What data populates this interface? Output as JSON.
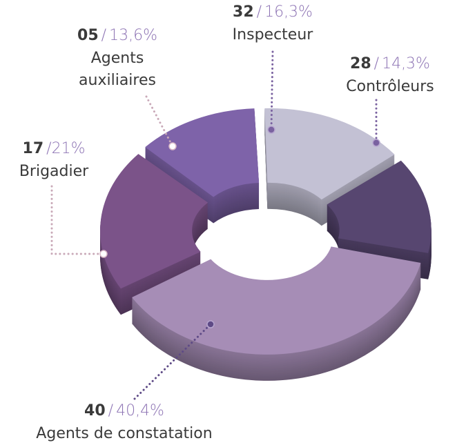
{
  "chart_data": {
    "type": "donut",
    "categories": [
      "Inspecteur",
      "Contrôleurs",
      "Agents de constatation",
      "Brigadier",
      "Agents auxiliaires"
    ],
    "counts": [
      "32",
      "28",
      "40",
      "17",
      "05"
    ],
    "separator": "/",
    "values": [
      16.3,
      14.3,
      40.4,
      21,
      13.6
    ],
    "value_labels": [
      "16,3%",
      "14,3%",
      "40,4%",
      "21%",
      "13,6%"
    ],
    "colors": [
      "#c3c1d4",
      "#574670",
      "#a68db6",
      "#7b5389",
      "#7e63a9"
    ]
  }
}
